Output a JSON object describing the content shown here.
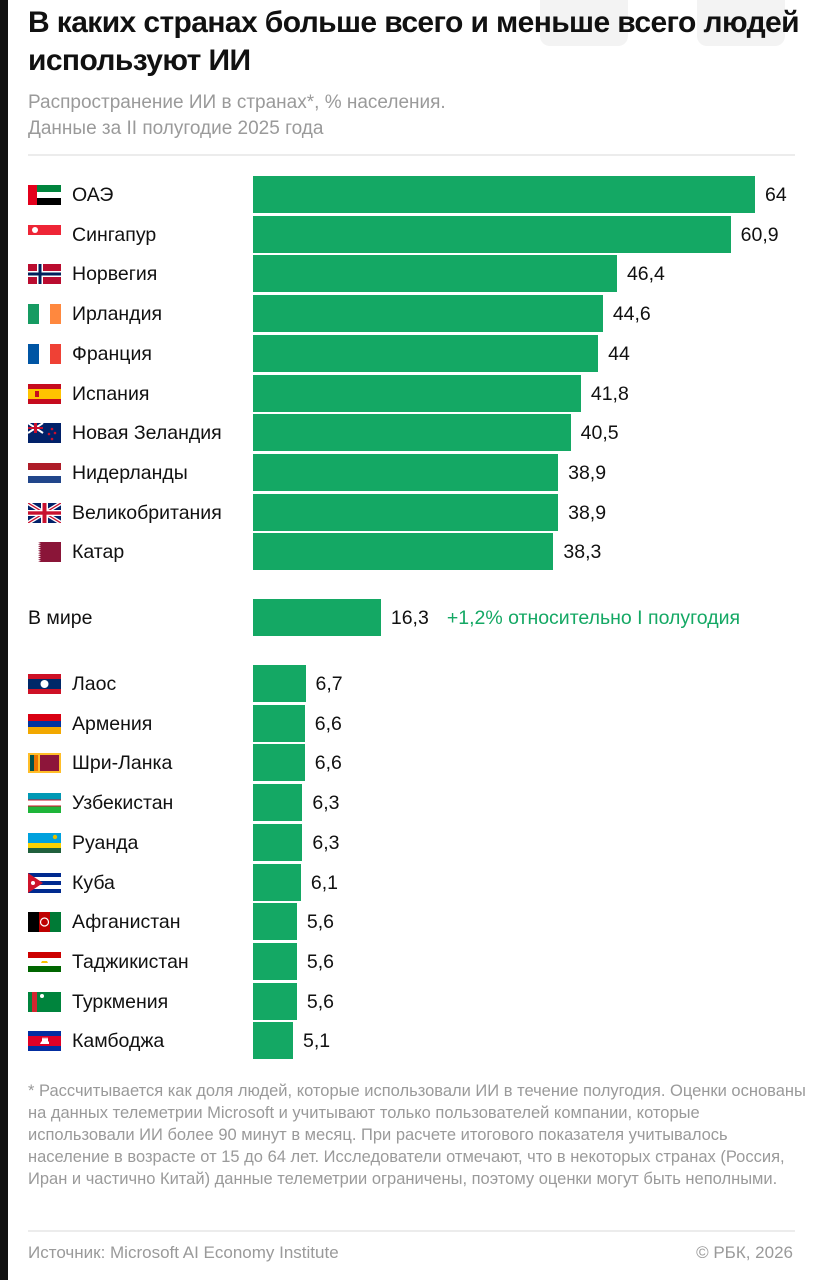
{
  "title": "В каких странах больше всего и меньше всего людей используют ИИ",
  "subtitle_line1": "Распространение ИИ в странах*, % населения.",
  "subtitle_line2": "Данные за II полугодие 2025 года",
  "chart_data": {
    "type": "bar",
    "orientation": "horizontal",
    "unit": "% населения",
    "xlim": [
      0,
      64
    ],
    "grid": false,
    "bar_color": "#14a864",
    "top": [
      {
        "country": "ОАЭ",
        "value": 64,
        "label": "64",
        "flag": "flag-uae-icon"
      },
      {
        "country": "Сингапур",
        "value": 60.9,
        "label": "60,9",
        "flag": "flag-singapore-icon"
      },
      {
        "country": "Норвегия",
        "value": 46.4,
        "label": "46,4",
        "flag": "flag-norway-icon"
      },
      {
        "country": "Ирландия",
        "value": 44.6,
        "label": "44,6",
        "flag": "flag-ireland-icon"
      },
      {
        "country": "Франция",
        "value": 44,
        "label": "44",
        "flag": "flag-france-icon"
      },
      {
        "country": "Испания",
        "value": 41.8,
        "label": "41,8",
        "flag": "flag-spain-icon"
      },
      {
        "country": "Новая Зеландия",
        "value": 40.5,
        "label": "40,5",
        "flag": "flag-new-zealand-icon"
      },
      {
        "country": "Нидерланды",
        "value": 38.9,
        "label": "38,9",
        "flag": "flag-netherlands-icon"
      },
      {
        "country": "Великобритания",
        "value": 38.9,
        "label": "38,9",
        "flag": "flag-uk-icon"
      },
      {
        "country": "Катар",
        "value": 38.3,
        "label": "38,3",
        "flag": "flag-qatar-icon"
      }
    ],
    "world": {
      "country": "В мире",
      "value": 16.3,
      "label": "16,3",
      "annotation": "+1,2% относительно I полугодия"
    },
    "bottom": [
      {
        "country": "Лаос",
        "value": 6.7,
        "label": "6,7",
        "flag": "flag-laos-icon"
      },
      {
        "country": "Армения",
        "value": 6.6,
        "label": "6,6",
        "flag": "flag-armenia-icon"
      },
      {
        "country": "Шри-Ланка",
        "value": 6.6,
        "label": "6,6",
        "flag": "flag-sri-lanka-icon"
      },
      {
        "country": "Узбекистан",
        "value": 6.3,
        "label": "6,3",
        "flag": "flag-uzbekistan-icon"
      },
      {
        "country": "Руанда",
        "value": 6.3,
        "label": "6,3",
        "flag": "flag-rwanda-icon"
      },
      {
        "country": "Куба",
        "value": 6.1,
        "label": "6,1",
        "flag": "flag-cuba-icon"
      },
      {
        "country": "Афганистан",
        "value": 5.6,
        "label": "5,6",
        "flag": "flag-afghanistan-icon"
      },
      {
        "country": "Таджикистан",
        "value": 5.6,
        "label": "5,6",
        "flag": "flag-tajikistan-icon"
      },
      {
        "country": "Туркмения",
        "value": 5.6,
        "label": "5,6",
        "flag": "flag-turkmenistan-icon"
      },
      {
        "country": "Камбоджа",
        "value": 5.1,
        "label": "5,1",
        "flag": "flag-cambodia-icon"
      }
    ]
  },
  "footnote": "* Рассчитывается как доля людей, которые использовали ИИ в течение полугодия. Оценки основаны на данных телеметрии Microsoft и учитывают только пользователей компании, которые использовали ИИ более 90 минут в месяц. При расчете итогового показателя учитывалось население в возрасте от 15 до 64 лет. Исследователи отмечают, что в некоторых странах (Россия, Иран и частично Китай) данные телеметрии ограничены, поэтому оценки могут быть неполными.",
  "source": "Источник: Microsoft AI Economy Institute",
  "copyright": "© РБК, 2026"
}
